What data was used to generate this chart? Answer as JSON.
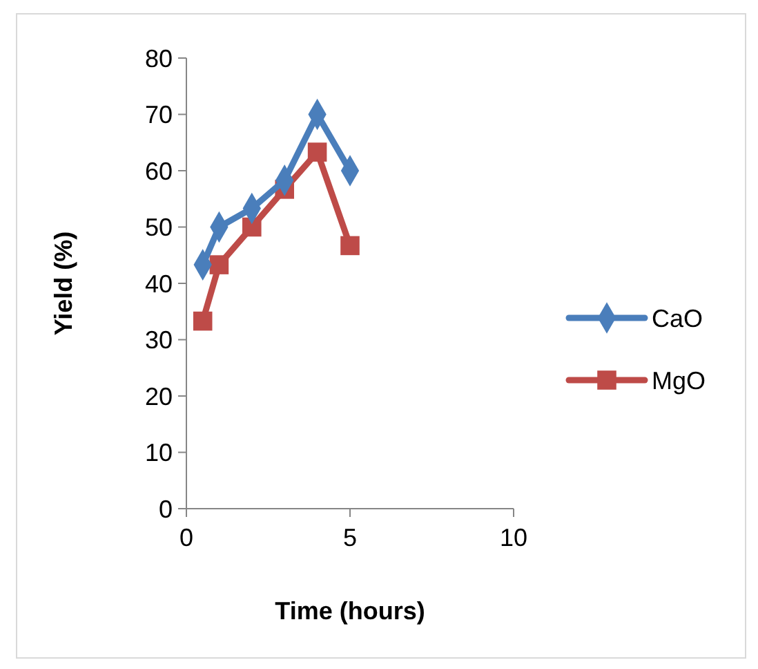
{
  "chart_data": {
    "type": "line",
    "xlabel": "Time (hours)",
    "ylabel": "Yield (%)",
    "xlim": [
      0,
      10
    ],
    "xticks": [
      0,
      5,
      10
    ],
    "ylim": [
      0,
      80
    ],
    "yticks": [
      0,
      10,
      20,
      30,
      40,
      50,
      60,
      70,
      80
    ],
    "grid": false,
    "legend": "right",
    "x": [
      0.5,
      1,
      2,
      3,
      4,
      5
    ],
    "series": [
      {
        "name": "CaO",
        "color": "#4a7ebb",
        "marker": "diamond",
        "values": [
          43.3,
          50,
          53.3,
          58.3,
          70,
          60
        ]
      },
      {
        "name": "MgO",
        "color": "#be4b48",
        "marker": "square",
        "values": [
          33.3,
          43.3,
          50,
          56.7,
          63.3,
          46.7
        ]
      }
    ]
  }
}
